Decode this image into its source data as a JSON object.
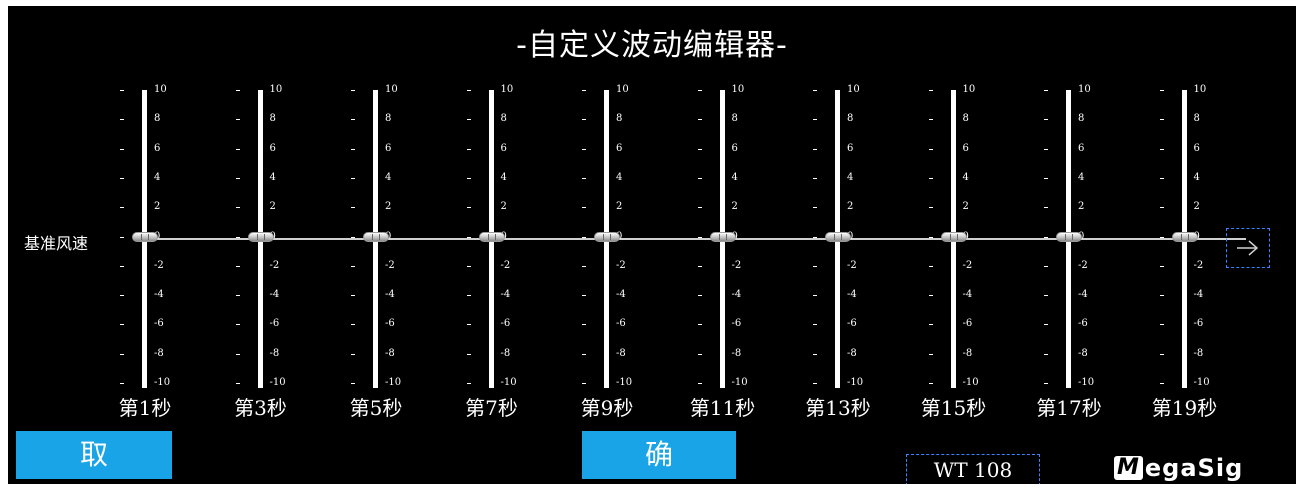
{
  "title": "-自定义波动编辑器-",
  "base_label": "基准风速",
  "scale": [
    "10",
    "8",
    "6",
    "4",
    "2",
    "0",
    "-2",
    "-4",
    "-6",
    "-8",
    "-10"
  ],
  "sliders": [
    {
      "label": "第1秒",
      "value": 0
    },
    {
      "label": "第3秒",
      "value": 0
    },
    {
      "label": "第5秒",
      "value": 0
    },
    {
      "label": "第7秒",
      "value": 0
    },
    {
      "label": "第9秒",
      "value": 0
    },
    {
      "label": "第11秒",
      "value": 0
    },
    {
      "label": "第13秒",
      "value": 0
    },
    {
      "label": "第15秒",
      "value": 0
    },
    {
      "label": "第17秒",
      "value": 0
    },
    {
      "label": "第19秒",
      "value": 0
    }
  ],
  "buttons": {
    "cancel": "取 消",
    "ok": "确 定"
  },
  "status": {
    "wt": "WT 108"
  },
  "logo": {
    "mark": "M",
    "text": "egaSig"
  },
  "colors": {
    "background": "#000000",
    "button": "#18a4e6",
    "dashed_border": "#3b86ff"
  },
  "icons": {
    "next": "arrow-right-icon",
    "thumb": "slider-thumb-icon"
  }
}
